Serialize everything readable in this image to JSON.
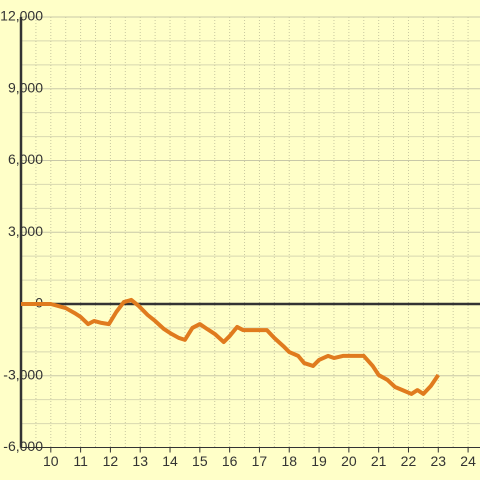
{
  "chart_data": {
    "type": "line",
    "x": [
      9,
      10,
      10.5,
      10.8,
      11,
      11.25,
      11.45,
      11.7,
      11.95,
      12.2,
      12.45,
      12.7,
      12.95,
      13.25,
      13.5,
      13.8,
      14.05,
      14.3,
      14.5,
      14.75,
      15,
      15.25,
      15.5,
      15.8,
      16,
      16.25,
      16.45,
      17.25,
      17.5,
      17.8,
      18,
      18.3,
      18.5,
      18.8,
      19,
      19.3,
      19.5,
      19.8,
      20.5,
      20.8,
      21,
      21.3,
      21.55,
      21.8,
      22.1,
      22.3,
      22.5,
      22.75,
      23
    ],
    "series": [
      {
        "color": "#e07b1e",
        "values": [
          0,
          0,
          -170,
          -380,
          -540,
          -840,
          -710,
          -790,
          -840,
          -330,
          80,
          170,
          -80,
          -460,
          -710,
          -1050,
          -1250,
          -1420,
          -1500,
          -1000,
          -840,
          -1050,
          -1250,
          -1590,
          -1340,
          -960,
          -1090,
          -1090,
          -1420,
          -1760,
          -2010,
          -2170,
          -2470,
          -2590,
          -2340,
          -2170,
          -2260,
          -2170,
          -2170,
          -2590,
          -2970,
          -3180,
          -3470,
          -3600,
          -3760,
          -3600,
          -3760,
          -3430,
          -2970
        ]
      }
    ],
    "xlim": [
      9,
      24.4
    ],
    "xticks": [
      10,
      11,
      12,
      13,
      14,
      15,
      16,
      17,
      18,
      19,
      20,
      21,
      22,
      23,
      24
    ],
    "ylim": [
      -6000,
      12000
    ],
    "yticks": [
      {
        "value": -6000,
        "label": "-6,000"
      },
      {
        "value": -3000,
        "label": "-3,000"
      },
      0,
      {
        "value": 3000,
        "label": "3,000"
      },
      {
        "value": 6000,
        "label": "6,000"
      },
      {
        "value": 9000,
        "label": "9,000"
      },
      {
        "value": 12000,
        "label": "12,000"
      }
    ],
    "grid": true
  }
}
